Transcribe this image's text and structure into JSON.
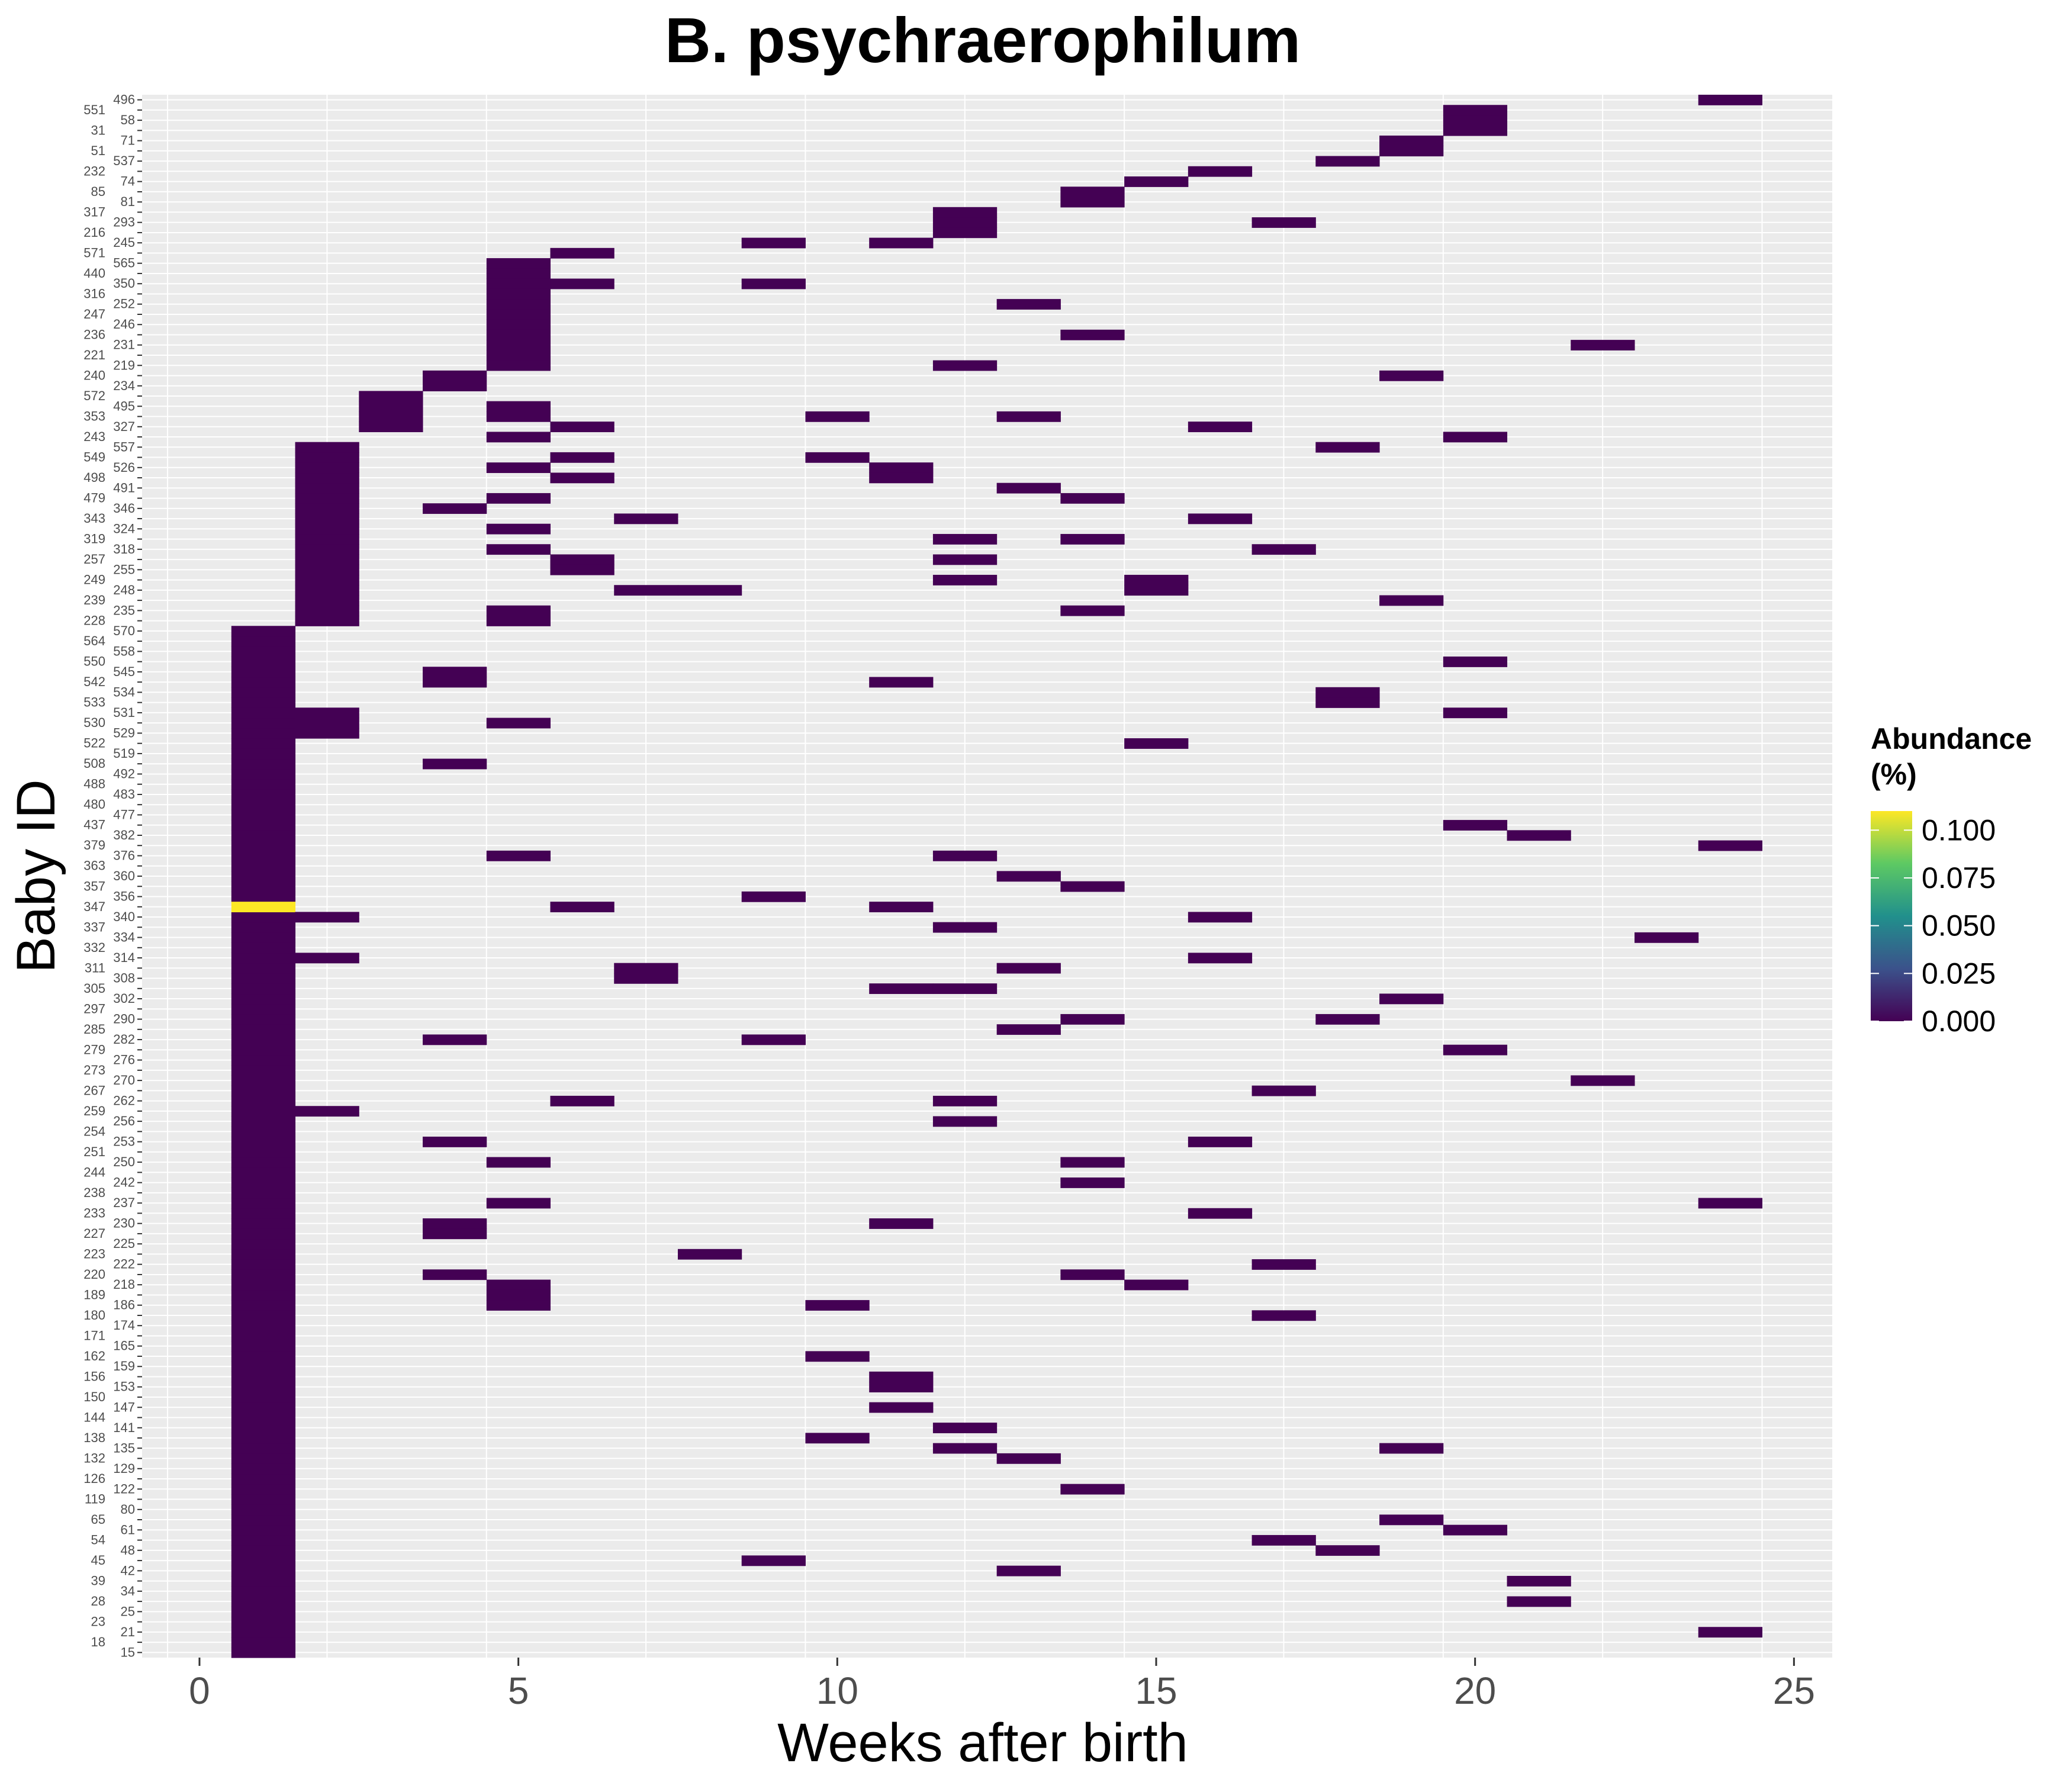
{
  "chart_data": {
    "type": "heatmap",
    "title": "B. psychraerophilum",
    "xlabel": "Weeks after birth",
    "ylabel": "Baby ID",
    "xlim": [
      -0.9,
      25.6
    ],
    "x_ticks": [
      0,
      5,
      10,
      15,
      20,
      25
    ],
    "y_labels": [
      "15",
      "18",
      "21",
      "23",
      "25",
      "28",
      "34",
      "39",
      "42",
      "45",
      "48",
      "54",
      "61",
      "65",
      "80",
      "119",
      "122",
      "126",
      "129",
      "132",
      "135",
      "138",
      "141",
      "144",
      "147",
      "150",
      "153",
      "156",
      "159",
      "162",
      "165",
      "171",
      "174",
      "180",
      "186",
      "189",
      "218",
      "220",
      "222",
      "223",
      "225",
      "227",
      "230",
      "233",
      "237",
      "238",
      "242",
      "244",
      "250",
      "251",
      "253",
      "254",
      "256",
      "259",
      "262",
      "267",
      "270",
      "273",
      "276",
      "279",
      "282",
      "285",
      "290",
      "297",
      "302",
      "305",
      "308",
      "311",
      "314",
      "332",
      "334",
      "337",
      "340",
      "347",
      "356",
      "357",
      "360",
      "363",
      "376",
      "379",
      "382",
      "437",
      "477",
      "480",
      "483",
      "488",
      "492",
      "508",
      "519",
      "522",
      "529",
      "530",
      "531",
      "533",
      "534",
      "542",
      "545",
      "550",
      "558",
      "564",
      "570",
      "228",
      "235",
      "239",
      "248",
      "249",
      "255",
      "257",
      "318",
      "319",
      "324",
      "343",
      "346",
      "479",
      "491",
      "498",
      "526",
      "549",
      "557",
      "243",
      "327",
      "353",
      "495",
      "572",
      "234",
      "240",
      "219",
      "221",
      "231",
      "236",
      "246",
      "247",
      "252",
      "316",
      "350",
      "440",
      "565",
      "571",
      "245",
      "216",
      "293",
      "317",
      "81",
      "85",
      "74",
      "232",
      "537",
      "51",
      "71",
      "31",
      "58",
      "551",
      "496"
    ],
    "legend": {
      "title": "Abundance (%)",
      "ticks": [
        0.0,
        0.025,
        0.05,
        0.075,
        0.1
      ],
      "tick_labels": [
        "0.000",
        "0.025",
        "0.050",
        "0.075",
        "0.100"
      ],
      "min": 0,
      "max": 0.11,
      "colors": [
        "#440154",
        "#3b528b",
        "#21908c",
        "#5dc963",
        "#fde725"
      ]
    },
    "panel_background": "#ebebeb",
    "grid_color": "#ffffff",
    "cells": [
      {
        "y": "347",
        "x": 1,
        "value": 0.11
      },
      {
        "y": "496",
        "x": 24,
        "value": 0
      },
      {
        "y": "58",
        "x": 20,
        "value": 0
      },
      {
        "y": "551",
        "x": 20,
        "value": 0
      },
      {
        "y": "31",
        "x": 20,
        "value": 0
      },
      {
        "y": "71",
        "x": 19,
        "value": 0
      },
      {
        "y": "51",
        "x": 19,
        "value": 0
      },
      {
        "y": "537",
        "x": 18,
        "value": 0
      },
      {
        "y": "232",
        "x": 16,
        "value": 0
      },
      {
        "y": "74",
        "x": 15,
        "value": 0
      },
      {
        "y": "85",
        "x": 14,
        "value": 0
      },
      {
        "y": "81",
        "x": 14,
        "value": 0
      },
      {
        "y": "317",
        "x": 12,
        "value": 0
      },
      {
        "y": "293",
        "x": 12,
        "value": 0
      },
      {
        "y": "216",
        "x": 12,
        "value": 0
      },
      {
        "y": "293",
        "x": 17,
        "value": 0
      },
      {
        "y": "245",
        "x": 9,
        "value": 0
      },
      {
        "y": "245",
        "x": 11,
        "value": 0
      },
      {
        "y": "571",
        "x": 6,
        "value": 0
      },
      {
        "y": "565",
        "x": 5,
        "value": 0
      },
      {
        "y": "440",
        "x": 5,
        "value": 0
      },
      {
        "y": "350",
        "x": 5,
        "value": 0
      },
      {
        "y": "316",
        "x": 5,
        "value": 0
      },
      {
        "y": "252",
        "x": 5,
        "value": 0
      },
      {
        "y": "247",
        "x": 5,
        "value": 0
      },
      {
        "y": "246",
        "x": 5,
        "value": 0
      },
      {
        "y": "236",
        "x": 5,
        "value": 0
      },
      {
        "y": "231",
        "x": 5,
        "value": 0
      },
      {
        "y": "221",
        "x": 5,
        "value": 0
      },
      {
        "y": "219",
        "x": 5,
        "value": 0
      },
      {
        "y": "350",
        "x": 6,
        "value": 0
      },
      {
        "y": "350",
        "x": 9,
        "value": 0
      },
      {
        "y": "252",
        "x": 13,
        "value": 0
      },
      {
        "y": "236",
        "x": 14,
        "value": 0
      },
      {
        "y": "231",
        "x": 22,
        "value": 0
      },
      {
        "y": "219",
        "x": 12,
        "value": 0
      },
      {
        "y": "240",
        "x": 4,
        "value": 0
      },
      {
        "y": "234",
        "x": 4,
        "value": 0
      },
      {
        "y": "240",
        "x": 19,
        "value": 0
      },
      {
        "y": "572",
        "x": 3,
        "value": 0
      },
      {
        "y": "495",
        "x": 3,
        "value": 0
      },
      {
        "y": "353",
        "x": 3,
        "value": 0
      },
      {
        "y": "327",
        "x": 3,
        "value": 0
      },
      {
        "y": "495",
        "x": 5,
        "value": 0
      },
      {
        "y": "353",
        "x": 5,
        "value": 0
      },
      {
        "y": "353",
        "x": 10,
        "value": 0
      },
      {
        "y": "353",
        "x": 13,
        "value": 0
      },
      {
        "y": "327",
        "x": 6,
        "value": 0
      },
      {
        "y": "327",
        "x": 16,
        "value": 0
      },
      {
        "y": "243",
        "x": 5,
        "value": 0
      },
      {
        "y": "243",
        "x": 20,
        "value": 0
      },
      {
        "y": "557",
        "x": 18,
        "value": 0
      },
      {
        "y": "549",
        "x": 6,
        "value": 0
      },
      {
        "y": "549",
        "x": 10,
        "value": 0
      },
      {
        "y": "526",
        "x": 5,
        "value": 0
      },
      {
        "y": "526",
        "x": 11,
        "value": 0
      },
      {
        "y": "498",
        "x": 6,
        "value": 0
      },
      {
        "y": "498",
        "x": 11,
        "value": 0
      },
      {
        "y": "491",
        "x": 13,
        "value": 0
      },
      {
        "y": "479",
        "x": 5,
        "value": 0
      },
      {
        "y": "479",
        "x": 14,
        "value": 0
      },
      {
        "y": "346",
        "x": 4,
        "value": 0
      },
      {
        "y": "343",
        "x": 7,
        "value": 0
      },
      {
        "y": "343",
        "x": 16,
        "value": 0
      },
      {
        "y": "324",
        "x": 5,
        "value": 0
      },
      {
        "y": "319",
        "x": 12,
        "value": 0
      },
      {
        "y": "319",
        "x": 14,
        "value": 0
      },
      {
        "y": "318",
        "x": 5,
        "value": 0
      },
      {
        "y": "318",
        "x": 17,
        "value": 0
      },
      {
        "y": "257",
        "x": 6,
        "value": 0
      },
      {
        "y": "257",
        "x": 12,
        "value": 0
      },
      {
        "y": "255",
        "x": 6,
        "value": 0
      },
      {
        "y": "249",
        "x": 12,
        "value": 0
      },
      {
        "y": "249",
        "x": 15,
        "value": 0
      },
      {
        "y": "248",
        "x": 7,
        "value": 0
      },
      {
        "y": "248",
        "x": 8,
        "value": 0
      },
      {
        "y": "248",
        "x": 15,
        "value": 0
      },
      {
        "y": "239",
        "x": 19,
        "value": 0
      },
      {
        "y": "235",
        "x": 5,
        "value": 0
      },
      {
        "y": "235",
        "x": 14,
        "value": 0
      },
      {
        "y": "228",
        "x": 5,
        "value": 0
      },
      {
        "y": "550",
        "x": 20,
        "value": 0
      },
      {
        "y": "545",
        "x": 4,
        "value": 0
      },
      {
        "y": "542",
        "x": 4,
        "value": 0
      },
      {
        "y": "542",
        "x": 11,
        "value": 0
      },
      {
        "y": "534",
        "x": 18,
        "value": 0
      },
      {
        "y": "533",
        "x": 18,
        "value": 0
      },
      {
        "y": "531",
        "x": 20,
        "value": 0
      },
      {
        "y": "531",
        "x": 2,
        "value": 0
      },
      {
        "y": "530",
        "x": 2,
        "value": 0
      },
      {
        "y": "529",
        "x": 2,
        "value": 0
      },
      {
        "y": "530",
        "x": 5,
        "value": 0
      },
      {
        "y": "522",
        "x": 15,
        "value": 0
      },
      {
        "y": "508",
        "x": 4,
        "value": 0
      },
      {
        "y": "437",
        "x": 20,
        "value": 0
      },
      {
        "y": "382",
        "x": 21,
        "value": 0
      },
      {
        "y": "379",
        "x": 24,
        "value": 0
      },
      {
        "y": "376",
        "x": 5,
        "value": 0
      },
      {
        "y": "376",
        "x": 12,
        "value": 0
      },
      {
        "y": "360",
        "x": 13,
        "value": 0
      },
      {
        "y": "357",
        "x": 14,
        "value": 0
      },
      {
        "y": "356",
        "x": 9,
        "value": 0
      },
      {
        "y": "347",
        "x": 6,
        "value": 0
      },
      {
        "y": "347",
        "x": 11,
        "value": 0
      },
      {
        "y": "340",
        "x": 2,
        "value": 0
      },
      {
        "y": "340",
        "x": 16,
        "value": 0
      },
      {
        "y": "337",
        "x": 12,
        "value": 0
      },
      {
        "y": "334",
        "x": 23,
        "value": 0
      },
      {
        "y": "314",
        "x": 2,
        "value": 0
      },
      {
        "y": "314",
        "x": 16,
        "value": 0
      },
      {
        "y": "311",
        "x": 7,
        "value": 0
      },
      {
        "y": "308",
        "x": 7,
        "value": 0
      },
      {
        "y": "311",
        "x": 13,
        "value": 0
      },
      {
        "y": "305",
        "x": 11,
        "value": 0
      },
      {
        "y": "305",
        "x": 12,
        "value": 0
      },
      {
        "y": "302",
        "x": 19,
        "value": 0
      },
      {
        "y": "290",
        "x": 14,
        "value": 0
      },
      {
        "y": "290",
        "x": 18,
        "value": 0
      },
      {
        "y": "285",
        "x": 13,
        "value": 0
      },
      {
        "y": "282",
        "x": 4,
        "value": 0
      },
      {
        "y": "282",
        "x": 9,
        "value": 0
      },
      {
        "y": "279",
        "x": 20,
        "value": 0
      },
      {
        "y": "270",
        "x": 22,
        "value": 0
      },
      {
        "y": "267",
        "x": 17,
        "value": 0
      },
      {
        "y": "262",
        "x": 6,
        "value": 0
      },
      {
        "y": "262",
        "x": 12,
        "value": 0
      },
      {
        "y": "259",
        "x": 2,
        "value": 0
      },
      {
        "y": "256",
        "x": 12,
        "value": 0
      },
      {
        "y": "253",
        "x": 4,
        "value": 0
      },
      {
        "y": "253",
        "x": 16,
        "value": 0
      },
      {
        "y": "250",
        "x": 5,
        "value": 0
      },
      {
        "y": "250",
        "x": 14,
        "value": 0
      },
      {
        "y": "242",
        "x": 14,
        "value": 0
      },
      {
        "y": "237",
        "x": 5,
        "value": 0
      },
      {
        "y": "237",
        "x": 24,
        "value": 0
      },
      {
        "y": "233",
        "x": 16,
        "value": 0
      },
      {
        "y": "230",
        "x": 4,
        "value": 0
      },
      {
        "y": "227",
        "x": 4,
        "value": 0
      },
      {
        "y": "230",
        "x": 11,
        "value": 0
      },
      {
        "y": "223",
        "x": 8,
        "value": 0
      },
      {
        "y": "222",
        "x": 17,
        "value": 0
      },
      {
        "y": "220",
        "x": 4,
        "value": 0
      },
      {
        "y": "220",
        "x": 14,
        "value": 0
      },
      {
        "y": "218",
        "x": 5,
        "value": 0
      },
      {
        "y": "189",
        "x": 5,
        "value": 0
      },
      {
        "y": "186",
        "x": 5,
        "value": 0
      },
      {
        "y": "218",
        "x": 15,
        "value": 0
      },
      {
        "y": "186",
        "x": 10,
        "value": 0
      },
      {
        "y": "180",
        "x": 17,
        "value": 0
      },
      {
        "y": "162",
        "x": 10,
        "value": 0
      },
      {
        "y": "156",
        "x": 11,
        "value": 0
      },
      {
        "y": "153",
        "x": 11,
        "value": 0
      },
      {
        "y": "147",
        "x": 11,
        "value": 0
      },
      {
        "y": "141",
        "x": 12,
        "value": 0
      },
      {
        "y": "138",
        "x": 10,
        "value": 0
      },
      {
        "y": "135",
        "x": 12,
        "value": 0
      },
      {
        "y": "135",
        "x": 19,
        "value": 0
      },
      {
        "y": "132",
        "x": 13,
        "value": 0
      },
      {
        "y": "122",
        "x": 14,
        "value": 0
      },
      {
        "y": "65",
        "x": 19,
        "value": 0
      },
      {
        "y": "61",
        "x": 20,
        "value": 0
      },
      {
        "y": "54",
        "x": 17,
        "value": 0
      },
      {
        "y": "48",
        "x": 18,
        "value": 0
      },
      {
        "y": "45",
        "x": 9,
        "value": 0
      },
      {
        "y": "42",
        "x": 13,
        "value": 0
      },
      {
        "y": "39",
        "x": 21,
        "value": 0
      },
      {
        "y": "28",
        "x": 21,
        "value": 0
      },
      {
        "y": "21",
        "x": 24,
        "value": 0
      }
    ],
    "fill_x1_from": "570",
    "fill_x1_to": "15",
    "fill_x2_from": "557",
    "fill_x2_to": "228"
  }
}
